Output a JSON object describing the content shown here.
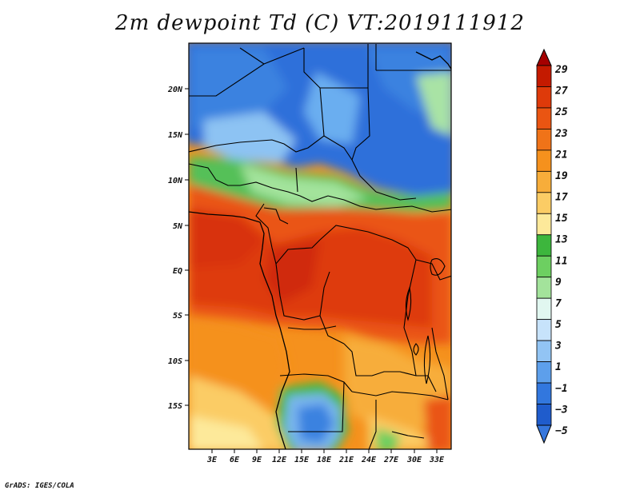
{
  "title": "2m dewpoint Td (C) VT:2019111912",
  "credit": "GrADS: IGES/COLA",
  "map": {
    "lat_labels": [
      "20N",
      "15N",
      "10N",
      "5N",
      "EQ",
      "5S",
      "10S",
      "15S"
    ],
    "lon_labels": [
      "3E",
      "6E",
      "9E",
      "12E",
      "15E",
      "18E",
      "21E",
      "24E",
      "27E",
      "30E",
      "33E"
    ],
    "field_regions": [
      {
        "name": "sahara-north",
        "value_c": -3
      },
      {
        "name": "sahel-transition",
        "value_c": 9
      },
      {
        "name": "gulf-guinea-coast",
        "value_c": 23
      },
      {
        "name": "congo-basin",
        "value_c": 24
      },
      {
        "name": "atlantic-south",
        "value_c": 17
      },
      {
        "name": "namibia-dry",
        "value_c": 1
      }
    ]
  },
  "colorbar": {
    "labels": [
      "29",
      "27",
      "25",
      "23",
      "21",
      "19",
      "17",
      "15",
      "13",
      "11",
      "9",
      "7",
      "5",
      "3",
      "1",
      "−1",
      "−3",
      "−5"
    ],
    "colors": [
      "#a50000",
      "#c41a00",
      "#de3a0a",
      "#ea5512",
      "#f07318",
      "#f5911d",
      "#f7ad3a",
      "#fbcc65",
      "#fde99a",
      "#3db63d",
      "#6dcf61",
      "#a3e39b",
      "#e1f7f0",
      "#c7e3fb",
      "#92c4f4",
      "#5d9feb",
      "#3277de",
      "#1f5ccc",
      "#3677dd"
    ]
  }
}
